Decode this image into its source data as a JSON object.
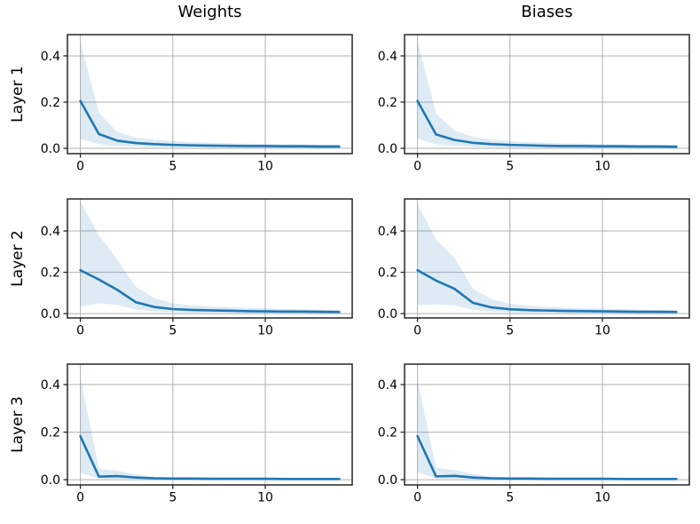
{
  "figure": {
    "background": "#ffffff"
  },
  "chart_data": {
    "type": "line",
    "title_columns": [
      "Weights",
      "Biases"
    ],
    "row_labels": [
      "Layer 1",
      "Layer 2",
      "Layer 3"
    ],
    "x": [
      0,
      1,
      2,
      3,
      4,
      5,
      6,
      7,
      8,
      9,
      10,
      11,
      12,
      13,
      14
    ],
    "xlim": [
      -0.7,
      14.7
    ],
    "xticks": {
      "values": [
        0,
        5,
        10
      ],
      "labels": [
        "0",
        "5",
        "10"
      ]
    },
    "yticks": {
      "values": [
        0,
        0.2,
        0.4
      ],
      "labels": [
        "0.0",
        "0.2",
        "0.4"
      ]
    },
    "grid": true,
    "legend_position": "none",
    "colors": {
      "line": "#1f77b4",
      "band": "#1f77b4",
      "band_alpha": 0.15,
      "grid": "#b0b0b0",
      "spine": "#262626",
      "text": "#000000"
    },
    "subplots": [
      {
        "id": "layer1-weights",
        "row": "Layer 1",
        "col": "Weights",
        "ylim": [
          -0.023,
          0.492
        ],
        "mean": [
          0.205,
          0.062,
          0.033,
          0.023,
          0.018,
          0.015,
          0.013,
          0.012,
          0.011,
          0.01,
          0.01,
          0.009,
          0.009,
          0.008,
          0.008
        ],
        "band_upper": [
          0.46,
          0.155,
          0.07,
          0.047,
          0.037,
          0.031,
          0.027,
          0.024,
          0.022,
          0.02,
          0.019,
          0.018,
          0.017,
          0.016,
          0.016
        ],
        "band_lower": [
          0.04,
          0.018,
          0.01,
          0.007,
          0.005,
          0.004,
          0.004,
          0.003,
          0.003,
          0.003,
          0.002,
          0.002,
          0.002,
          0.002,
          0.002
        ]
      },
      {
        "id": "layer1-biases",
        "row": "Layer 1",
        "col": "Biases",
        "ylim": [
          -0.023,
          0.492
        ],
        "mean": [
          0.205,
          0.06,
          0.036,
          0.024,
          0.018,
          0.015,
          0.013,
          0.011,
          0.01,
          0.01,
          0.009,
          0.009,
          0.008,
          0.008,
          0.007
        ],
        "band_upper": [
          0.465,
          0.15,
          0.078,
          0.05,
          0.038,
          0.031,
          0.027,
          0.024,
          0.021,
          0.02,
          0.018,
          0.017,
          0.016,
          0.016,
          0.015
        ],
        "band_lower": [
          0.042,
          0.017,
          0.011,
          0.007,
          0.005,
          0.004,
          0.003,
          0.003,
          0.003,
          0.002,
          0.002,
          0.002,
          0.002,
          0.002,
          0.001
        ]
      },
      {
        "id": "layer2-weights",
        "row": "Layer 2",
        "col": "Weights",
        "ylim": [
          -0.021,
          0.555
        ],
        "mean": [
          0.21,
          0.165,
          0.115,
          0.055,
          0.032,
          0.022,
          0.018,
          0.016,
          0.014,
          0.012,
          0.011,
          0.01,
          0.01,
          0.009,
          0.008
        ],
        "band_upper": [
          0.54,
          0.38,
          0.26,
          0.13,
          0.075,
          0.05,
          0.04,
          0.035,
          0.031,
          0.028,
          0.025,
          0.023,
          0.021,
          0.02,
          0.019
        ],
        "band_lower": [
          0.035,
          0.05,
          0.042,
          0.02,
          0.01,
          0.007,
          0.005,
          0.004,
          0.004,
          0.003,
          0.003,
          0.003,
          0.002,
          0.002,
          0.002
        ]
      },
      {
        "id": "layer2-biases",
        "row": "Layer 2",
        "col": "Biases",
        "ylim": [
          -0.021,
          0.555
        ],
        "mean": [
          0.21,
          0.16,
          0.12,
          0.052,
          0.03,
          0.021,
          0.017,
          0.015,
          0.013,
          0.012,
          0.011,
          0.01,
          0.009,
          0.009,
          0.008
        ],
        "band_upper": [
          0.53,
          0.36,
          0.27,
          0.12,
          0.07,
          0.048,
          0.038,
          0.033,
          0.029,
          0.026,
          0.024,
          0.022,
          0.02,
          0.019,
          0.018
        ],
        "band_lower": [
          0.04,
          0.045,
          0.04,
          0.018,
          0.009,
          0.006,
          0.005,
          0.004,
          0.003,
          0.003,
          0.003,
          0.002,
          0.002,
          0.002,
          0.002
        ]
      },
      {
        "id": "layer3-weights",
        "row": "Layer 3",
        "col": "Weights",
        "ylim": [
          -0.022,
          0.486
        ],
        "mean": [
          0.183,
          0.013,
          0.015,
          0.009,
          0.006,
          0.005,
          0.005,
          0.004,
          0.004,
          0.004,
          0.004,
          0.003,
          0.003,
          0.003,
          0.003
        ],
        "band_upper": [
          0.43,
          0.045,
          0.038,
          0.022,
          0.012,
          0.009,
          0.008,
          0.007,
          0.007,
          0.006,
          0.006,
          0.006,
          0.005,
          0.005,
          0.005
        ],
        "band_lower": [
          0.03,
          0.004,
          0.004,
          0.003,
          0.002,
          0.002,
          0.002,
          0.001,
          0.001,
          0.001,
          0.001,
          0.001,
          0.001,
          0.001,
          0.001
        ]
      },
      {
        "id": "layer3-biases",
        "row": "Layer 3",
        "col": "Biases",
        "ylim": [
          -0.022,
          0.486
        ],
        "mean": [
          0.183,
          0.014,
          0.016,
          0.009,
          0.006,
          0.005,
          0.005,
          0.004,
          0.004,
          0.004,
          0.004,
          0.003,
          0.003,
          0.003,
          0.003
        ],
        "band_upper": [
          0.42,
          0.05,
          0.04,
          0.024,
          0.013,
          0.009,
          0.008,
          0.007,
          0.007,
          0.006,
          0.006,
          0.006,
          0.005,
          0.005,
          0.005
        ],
        "band_lower": [
          0.032,
          0.005,
          0.004,
          0.003,
          0.002,
          0.002,
          0.002,
          0.001,
          0.001,
          0.001,
          0.001,
          0.001,
          0.001,
          0.001,
          0.001
        ]
      }
    ]
  }
}
